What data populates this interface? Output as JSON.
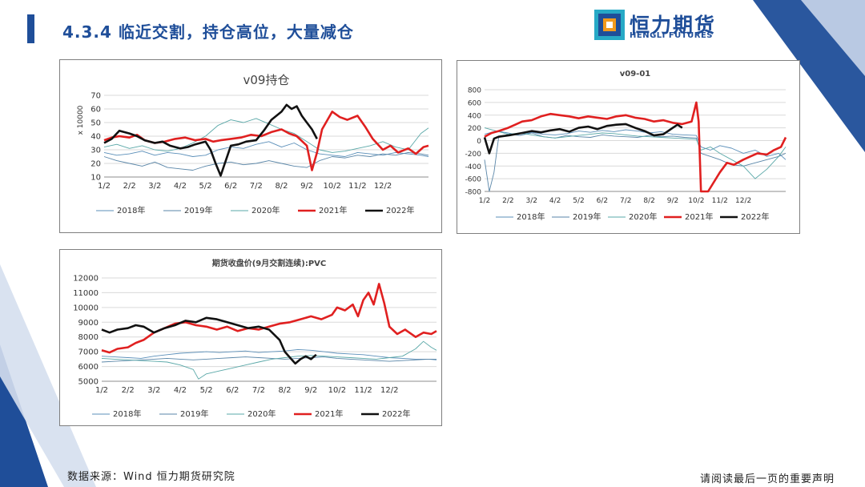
{
  "header": {
    "title": "4.3.4 临近交割，持仓高位，大量减仓"
  },
  "brand": {
    "name_cn": "恒力期货",
    "name_en": "HENGLI FUTURES",
    "primary": "#1f4e99",
    "accent_orange": "#f29a1c",
    "accent_teal": "#27a9c6"
  },
  "footer": {
    "source": "数据来源：Wind  恒力期货研究院",
    "disclaimer": "请阅读最后一页的重要声明"
  },
  "colors": {
    "y2018": "#5b8fb9",
    "y2019": "#5a86a8",
    "y2020": "#5aa8a8",
    "y2021": "#e02020",
    "y2022": "#111111"
  },
  "chart_data": [
    {
      "id": "oi",
      "type": "line",
      "title": "v09持仓",
      "ylabel": "x 10000",
      "ylim": [
        10,
        70
      ],
      "yticks": [
        "10",
        "20",
        "30",
        "40",
        "50",
        "60",
        "70"
      ],
      "xticks": [
        "1/2",
        "2/2",
        "3/2",
        "4/2",
        "5/2",
        "6/2",
        "7/2",
        "8/2",
        "9/2",
        "10/2",
        "11/2",
        "12/2"
      ],
      "series": [
        {
          "name": "2018年",
          "x": [
            0,
            0.5,
            1,
            1.5,
            2,
            2.5,
            3,
            3.5,
            4,
            4.5,
            5,
            5.5,
            6,
            6.5,
            7,
            7.5,
            8,
            8.5,
            9,
            9.5,
            10,
            10.5,
            11,
            11.5,
            12,
            12.5,
            12.8
          ],
          "values": [
            28,
            26,
            27,
            29,
            26,
            28,
            27,
            25,
            26,
            30,
            32,
            31,
            34,
            36,
            32,
            35,
            30,
            27,
            26,
            25,
            28,
            27,
            26,
            28,
            27,
            26,
            25
          ]
        },
        {
          "name": "2019年",
          "x": [
            0,
            0.5,
            1,
            1.5,
            2,
            2.5,
            3,
            3.5,
            4,
            4.5,
            5,
            5.5,
            6,
            6.5,
            7,
            7.5,
            8,
            8.5,
            9,
            9.5,
            10,
            10.5,
            11,
            11.5,
            12,
            12.5,
            12.8
          ],
          "values": [
            25,
            22,
            20,
            18,
            21,
            17,
            16,
            15,
            18,
            20,
            21,
            19,
            20,
            22,
            20,
            18,
            17,
            22,
            25,
            24,
            26,
            25,
            27,
            26,
            28,
            27,
            26
          ]
        },
        {
          "name": "2020年",
          "x": [
            0,
            0.5,
            1,
            1.5,
            2,
            2.5,
            3,
            3.5,
            4,
            4.5,
            5,
            5.5,
            6,
            6.5,
            7,
            7.5,
            8,
            8.5,
            9,
            9.5,
            10,
            10.5,
            11,
            11.5,
            12,
            12.5,
            12.8
          ],
          "values": [
            32,
            34,
            31,
            33,
            30,
            29,
            31,
            35,
            40,
            48,
            52,
            50,
            53,
            49,
            45,
            42,
            36,
            30,
            28,
            29,
            31,
            33,
            36,
            32,
            30,
            42,
            46
          ]
        },
        {
          "name": "2021年",
          "x": [
            0,
            0.3,
            0.6,
            1,
            1.3,
            1.6,
            2,
            2.4,
            2.8,
            3.2,
            3.6,
            4,
            4.3,
            4.6,
            5,
            5.4,
            5.8,
            6.2,
            6.6,
            7,
            7.3,
            7.6,
            8,
            8.2,
            8.4,
            8.6,
            9,
            9.3,
            9.6,
            10,
            10.3,
            10.6,
            11,
            11.3,
            11.6,
            12,
            12.3,
            12.6,
            12.8
          ],
          "values": [
            37,
            39,
            40,
            39,
            41,
            37,
            35,
            36,
            38,
            39,
            37,
            38,
            36,
            37,
            38,
            39,
            41,
            40,
            43,
            45,
            42,
            40,
            33,
            15,
            28,
            45,
            58,
            54,
            52,
            55,
            47,
            38,
            30,
            33,
            28,
            31,
            27,
            32,
            33
          ]
        },
        {
          "name": "2022年",
          "x": [
            0,
            0.3,
            0.6,
            1,
            1.3,
            1.6,
            2,
            2.3,
            2.6,
            3,
            3.3,
            3.6,
            4,
            4.2,
            4.4,
            4.6,
            5,
            5.3,
            5.6,
            6,
            6.3,
            6.6,
            7,
            7.2,
            7.4,
            7.6,
            7.8,
            8,
            8.2,
            8.4
          ],
          "values": [
            35,
            38,
            44,
            42,
            40,
            37,
            35,
            36,
            33,
            31,
            32,
            34,
            36,
            30,
            20,
            11,
            33,
            34,
            36,
            37,
            44,
            52,
            58,
            63,
            60,
            62,
            55,
            50,
            45,
            38
          ]
        }
      ]
    },
    {
      "id": "spread",
      "type": "line",
      "title": "v09-01",
      "ylim": [
        -800,
        800
      ],
      "yticks": [
        "-800",
        "-600",
        "-400",
        "-200",
        "0",
        "200",
        "400",
        "600",
        "800"
      ],
      "xticks": [
        "1/2",
        "2/2",
        "3/2",
        "4/2",
        "5/2",
        "6/2",
        "7/2",
        "8/2",
        "9/2",
        "10/2",
        "11/2",
        "12/2"
      ],
      "series": [
        {
          "name": "2018年",
          "x": [
            0,
            0.5,
            1,
            1.5,
            2,
            2.5,
            3,
            3.5,
            4,
            4.5,
            5,
            5.5,
            6,
            6.5,
            7,
            7.5,
            8,
            8.5,
            9,
            9.2,
            9.6,
            10,
            10.5,
            11,
            11.5,
            12,
            12.5,
            12.8
          ],
          "values": [
            100,
            150,
            120,
            80,
            130,
            100,
            90,
            110,
            150,
            130,
            160,
            140,
            170,
            150,
            120,
            140,
            100,
            90,
            80,
            -100,
            -150,
            -80,
            -120,
            -200,
            -150,
            -250,
            -200,
            -300
          ]
        },
        {
          "name": "2019年",
          "x": [
            0,
            0.2,
            0.4,
            0.6,
            1,
            1.5,
            2,
            2.5,
            3,
            3.5,
            4,
            4.5,
            5,
            5.5,
            6,
            6.5,
            7,
            7.5,
            8,
            8.5,
            9,
            9.2,
            9.6,
            10,
            10.5,
            11,
            11.5,
            12,
            12.5,
            12.8
          ],
          "values": [
            -300,
            -800,
            -500,
            50,
            100,
            80,
            120,
            60,
            40,
            80,
            60,
            50,
            90,
            70,
            60,
            50,
            80,
            60,
            70,
            50,
            40,
            -200,
            -250,
            -300,
            -380,
            -400,
            -350,
            -300,
            -250,
            -200
          ]
        },
        {
          "name": "2020年",
          "x": [
            0,
            0.5,
            1,
            1.5,
            2,
            2.5,
            3,
            3.5,
            4,
            4.5,
            5,
            5.5,
            6,
            6.5,
            7,
            7.5,
            8,
            8.5,
            9,
            9.2,
            9.6,
            10,
            10.5,
            11,
            11.5,
            12,
            12.5,
            12.8
          ],
          "values": [
            200,
            150,
            100,
            120,
            90,
            60,
            40,
            60,
            80,
            100,
            120,
            110,
            90,
            70,
            60,
            50,
            40,
            30,
            20,
            -150,
            -100,
            -200,
            -300,
            -400,
            -600,
            -450,
            -250,
            -100
          ]
        },
        {
          "name": "2021年",
          "x": [
            0,
            0.3,
            0.6,
            1,
            1.3,
            1.6,
            2,
            2.4,
            2.8,
            3.2,
            3.6,
            4,
            4.4,
            4.8,
            5.2,
            5.6,
            6,
            6.4,
            6.8,
            7.2,
            7.6,
            8,
            8.4,
            8.8,
            9.0,
            9.1,
            9.2,
            9.3,
            9.5,
            10,
            10.3,
            10.6,
            11,
            11.3,
            11.6,
            12,
            12.3,
            12.6,
            12.8
          ],
          "values": [
            60,
            120,
            150,
            200,
            250,
            300,
            320,
            380,
            420,
            400,
            380,
            350,
            380,
            360,
            340,
            380,
            400,
            360,
            340,
            300,
            320,
            280,
            260,
            300,
            600,
            300,
            -800,
            -800,
            -800,
            -500,
            -350,
            -380,
            -300,
            -250,
            -200,
            -220,
            -150,
            -100,
            50
          ]
        },
        {
          "name": "2022年",
          "x": [
            0,
            0.2,
            0.4,
            0.6,
            1,
            1.3,
            1.6,
            2,
            2.4,
            2.8,
            3.2,
            3.6,
            4,
            4.4,
            4.8,
            5.2,
            5.6,
            6,
            6.4,
            6.8,
            7.2,
            7.6,
            8,
            8.2,
            8.4
          ],
          "values": [
            50,
            -200,
            30,
            60,
            80,
            100,
            120,
            150,
            130,
            160,
            180,
            140,
            200,
            220,
            180,
            230,
            250,
            260,
            200,
            150,
            80,
            100,
            200,
            250,
            200
          ]
        }
      ]
    },
    {
      "id": "price",
      "type": "line",
      "title": "期货收盘价(9月交割连续):PVC",
      "ylim": [
        5000,
        12000
      ],
      "yticks": [
        "5000",
        "6000",
        "7000",
        "8000",
        "9000",
        "10000",
        "11000",
        "12000"
      ],
      "xticks": [
        "1/2",
        "2/2",
        "3/2",
        "4/2",
        "5/2",
        "6/2",
        "7/2",
        "8/2",
        "9/2",
        "10/2",
        "11/2",
        "12/2"
      ],
      "series": [
        {
          "name": "2018年",
          "x": [
            0,
            0.5,
            1,
            1.5,
            2,
            2.5,
            3,
            3.5,
            4,
            4.5,
            5,
            5.5,
            6,
            6.5,
            7,
            7.5,
            8,
            8.5,
            9,
            9.5,
            10,
            10.5,
            11,
            11.5,
            12,
            12.5,
            12.8
          ],
          "values": [
            6700,
            6650,
            6600,
            6550,
            6700,
            6800,
            6900,
            6950,
            7000,
            6950,
            7000,
            7050,
            6950,
            7000,
            7050,
            7150,
            7100,
            7000,
            6900,
            6850,
            6800,
            6700,
            6600,
            6550,
            6500,
            6500,
            6450
          ]
        },
        {
          "name": "2019年",
          "x": [
            0,
            0.5,
            1,
            1.5,
            2,
            2.5,
            3,
            3.5,
            4,
            4.5,
            5,
            5.5,
            6,
            6.5,
            7,
            7.5,
            8,
            8.5,
            9,
            9.5,
            10,
            10.5,
            11,
            11.5,
            12,
            12.5,
            12.8
          ],
          "values": [
            6300,
            6350,
            6400,
            6450,
            6500,
            6550,
            6500,
            6450,
            6500,
            6550,
            6600,
            6650,
            6600,
            6550,
            6500,
            6550,
            6600,
            6650,
            6550,
            6500,
            6450,
            6400,
            6350,
            6400,
            6450,
            6500,
            6500
          ]
        },
        {
          "name": "2020年",
          "x": [
            0,
            0.5,
            1,
            1.5,
            2,
            2.5,
            3,
            3.5,
            3.7,
            4,
            4.5,
            5,
            5.5,
            6,
            6.5,
            7,
            7.5,
            8,
            8.5,
            9,
            9.5,
            10,
            10.5,
            11,
            11.5,
            12,
            12.3,
            12.6,
            12.8
          ],
          "values": [
            6550,
            6500,
            6450,
            6400,
            6350,
            6300,
            6100,
            5800,
            5150,
            5500,
            5700,
            5900,
            6100,
            6300,
            6500,
            6600,
            6700,
            6750,
            6700,
            6650,
            6600,
            6550,
            6500,
            6600,
            6700,
            7200,
            7700,
            7300,
            7100
          ]
        },
        {
          "name": "2021年",
          "x": [
            0,
            0.3,
            0.6,
            1,
            1.3,
            1.6,
            2,
            2.4,
            2.8,
            3.2,
            3.6,
            4,
            4.4,
            4.8,
            5.2,
            5.6,
            6,
            6.4,
            6.8,
            7.2,
            7.6,
            8,
            8.4,
            8.8,
            9.0,
            9.3,
            9.6,
            9.8,
            10,
            10.2,
            10.4,
            10.6,
            10.8,
            11,
            11.3,
            11.6,
            12,
            12.3,
            12.6,
            12.8
          ],
          "values": [
            7100,
            6950,
            7200,
            7300,
            7600,
            7800,
            8300,
            8600,
            8900,
            9000,
            8800,
            8700,
            8500,
            8700,
            8400,
            8600,
            8500,
            8700,
            8900,
            9000,
            9200,
            9400,
            9200,
            9500,
            10000,
            9800,
            10200,
            9400,
            10500,
            11000,
            10200,
            11600,
            10300,
            8700,
            8200,
            8500,
            8000,
            8300,
            8200,
            8400
          ]
        },
        {
          "name": "2022年",
          "x": [
            0,
            0.3,
            0.6,
            1,
            1.3,
            1.6,
            2,
            2.4,
            2.8,
            3.2,
            3.6,
            4,
            4.4,
            4.8,
            5.2,
            5.6,
            6,
            6.4,
            6.8,
            7,
            7.2,
            7.4,
            7.6,
            7.8,
            8,
            8.2
          ],
          "values": [
            8500,
            8300,
            8500,
            8600,
            8800,
            8700,
            8300,
            8600,
            8800,
            9100,
            9000,
            9300,
            9200,
            9000,
            8800,
            8600,
            8700,
            8500,
            7800,
            7000,
            6600,
            6200,
            6500,
            6700,
            6500,
            6800
          ]
        }
      ]
    }
  ]
}
